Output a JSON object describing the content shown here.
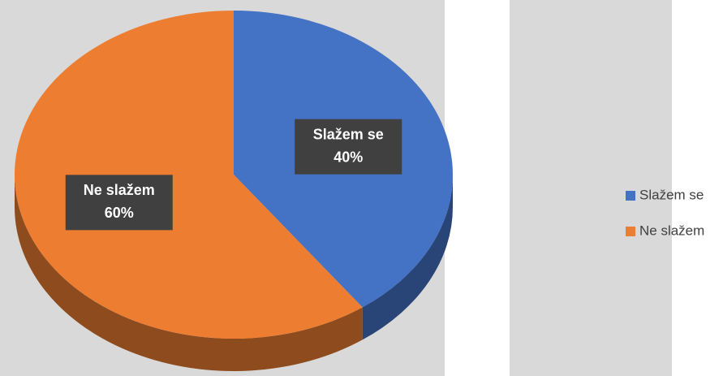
{
  "chart_data": {
    "type": "pie",
    "categories": [
      "Slažem se",
      "Ne slažem"
    ],
    "values": [
      40,
      60
    ],
    "value_labels": [
      "40%",
      "60%"
    ],
    "colors": [
      "#4472c4",
      "#ed7d31"
    ],
    "legend": "right"
  }
}
